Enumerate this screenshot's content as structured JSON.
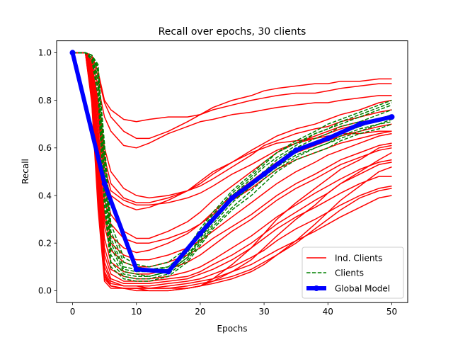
{
  "chart_data": {
    "type": "line",
    "title": "Recall over epochs, 30 clients",
    "xlabel": "Epochs",
    "ylabel": "Recall",
    "xlim": [
      -2.5,
      52.5
    ],
    "ylim": [
      -0.05,
      1.05
    ],
    "xticks": [
      0,
      10,
      20,
      30,
      40,
      50
    ],
    "yticks": [
      0.0,
      0.2,
      0.4,
      0.6,
      0.8,
      1.0
    ],
    "ytick_labels": [
      "0.0",
      "0.2",
      "0.4",
      "0.6",
      "0.8",
      "1.0"
    ],
    "grid": false,
    "legend": {
      "location": "lower right",
      "entries": [
        "Ind. Clients",
        "Clients",
        "Global Model"
      ]
    },
    "colors": {
      "ind_clients": "#ff0000",
      "clients": "#008000",
      "global": "#0000ff"
    },
    "ind_clients_x": [
      0,
      2,
      3,
      4,
      5,
      6,
      8,
      10,
      12,
      15,
      18,
      20,
      22,
      25,
      28,
      30,
      32,
      35,
      38,
      40,
      42,
      45,
      48,
      50
    ],
    "ind_clients": [
      [
        1.0,
        1.0,
        0.99,
        0.92,
        0.8,
        0.76,
        0.72,
        0.71,
        0.72,
        0.73,
        0.73,
        0.74,
        0.76,
        0.78,
        0.8,
        0.81,
        0.82,
        0.83,
        0.83,
        0.84,
        0.85,
        0.86,
        0.87,
        0.87
      ],
      [
        1.0,
        1.0,
        0.98,
        0.9,
        0.79,
        0.73,
        0.67,
        0.64,
        0.64,
        0.67,
        0.71,
        0.74,
        0.77,
        0.8,
        0.82,
        0.84,
        0.85,
        0.86,
        0.87,
        0.87,
        0.88,
        0.88,
        0.89,
        0.89
      ],
      [
        1.0,
        1.0,
        0.97,
        0.86,
        0.73,
        0.67,
        0.61,
        0.6,
        0.62,
        0.66,
        0.69,
        0.71,
        0.72,
        0.74,
        0.75,
        0.76,
        0.77,
        0.78,
        0.79,
        0.79,
        0.8,
        0.81,
        0.82,
        0.82
      ],
      [
        1.0,
        1.0,
        0.96,
        0.8,
        0.6,
        0.5,
        0.43,
        0.4,
        0.39,
        0.4,
        0.42,
        0.45,
        0.49,
        0.54,
        0.59,
        0.62,
        0.65,
        0.68,
        0.7,
        0.72,
        0.74,
        0.76,
        0.79,
        0.8
      ],
      [
        1.0,
        1.0,
        0.95,
        0.78,
        0.56,
        0.45,
        0.39,
        0.37,
        0.37,
        0.39,
        0.42,
        0.44,
        0.47,
        0.52,
        0.57,
        0.61,
        0.63,
        0.66,
        0.68,
        0.69,
        0.71,
        0.73,
        0.75,
        0.76
      ],
      [
        1.0,
        1.0,
        0.94,
        0.75,
        0.52,
        0.42,
        0.38,
        0.36,
        0.36,
        0.37,
        0.39,
        0.41,
        0.44,
        0.49,
        0.53,
        0.56,
        0.59,
        0.62,
        0.64,
        0.66,
        0.68,
        0.7,
        0.72,
        0.73
      ],
      [
        1.0,
        1.0,
        0.93,
        0.72,
        0.48,
        0.4,
        0.36,
        0.34,
        0.35,
        0.38,
        0.42,
        0.46,
        0.5,
        0.54,
        0.58,
        0.6,
        0.62,
        0.63,
        0.64,
        0.65,
        0.66,
        0.66,
        0.67,
        0.67
      ],
      [
        1.0,
        1.0,
        0.92,
        0.68,
        0.42,
        0.32,
        0.25,
        0.22,
        0.22,
        0.25,
        0.29,
        0.33,
        0.38,
        0.44,
        0.5,
        0.54,
        0.58,
        0.62,
        0.65,
        0.67,
        0.69,
        0.71,
        0.72,
        0.72
      ],
      [
        1.0,
        1.0,
        0.91,
        0.66,
        0.38,
        0.28,
        0.22,
        0.2,
        0.2,
        0.22,
        0.25,
        0.28,
        0.32,
        0.38,
        0.43,
        0.47,
        0.51,
        0.55,
        0.58,
        0.6,
        0.62,
        0.64,
        0.66,
        0.67
      ],
      [
        1.0,
        1.0,
        0.9,
        0.62,
        0.32,
        0.23,
        0.18,
        0.16,
        0.17,
        0.2,
        0.24,
        0.28,
        0.33,
        0.4,
        0.46,
        0.5,
        0.54,
        0.58,
        0.61,
        0.63,
        0.65,
        0.67,
        0.69,
        0.7
      ],
      [
        1.0,
        1.0,
        0.9,
        0.6,
        0.3,
        0.2,
        0.15,
        0.13,
        0.13,
        0.15,
        0.18,
        0.21,
        0.25,
        0.31,
        0.37,
        0.41,
        0.45,
        0.5,
        0.54,
        0.57,
        0.59,
        0.62,
        0.65,
        0.66
      ],
      [
        1.0,
        1.0,
        0.89,
        0.58,
        0.27,
        0.17,
        0.12,
        0.1,
        0.1,
        0.12,
        0.15,
        0.18,
        0.22,
        0.27,
        0.32,
        0.36,
        0.4,
        0.45,
        0.49,
        0.52,
        0.55,
        0.58,
        0.61,
        0.62
      ],
      [
        1.0,
        1.0,
        0.88,
        0.55,
        0.22,
        0.12,
        0.08,
        0.07,
        0.07,
        0.09,
        0.12,
        0.15,
        0.19,
        0.25,
        0.3,
        0.34,
        0.38,
        0.43,
        0.47,
        0.5,
        0.53,
        0.56,
        0.59,
        0.6
      ],
      [
        1.0,
        1.0,
        0.87,
        0.52,
        0.18,
        0.09,
        0.06,
        0.05,
        0.05,
        0.06,
        0.08,
        0.1,
        0.13,
        0.18,
        0.23,
        0.27,
        0.31,
        0.36,
        0.41,
        0.44,
        0.47,
        0.51,
        0.54,
        0.55
      ],
      [
        1.0,
        1.0,
        0.86,
        0.5,
        0.15,
        0.07,
        0.04,
        0.04,
        0.04,
        0.05,
        0.06,
        0.08,
        0.11,
        0.15,
        0.2,
        0.24,
        0.28,
        0.33,
        0.38,
        0.41,
        0.45,
        0.49,
        0.53,
        0.54
      ],
      [
        1.0,
        1.0,
        0.85,
        0.47,
        0.12,
        0.05,
        0.03,
        0.03,
        0.03,
        0.04,
        0.05,
        0.07,
        0.09,
        0.13,
        0.18,
        0.22,
        0.26,
        0.31,
        0.35,
        0.38,
        0.41,
        0.45,
        0.48,
        0.48
      ],
      [
        1.0,
        1.0,
        0.84,
        0.44,
        0.1,
        0.04,
        0.02,
        0.02,
        0.02,
        0.03,
        0.04,
        0.05,
        0.07,
        0.1,
        0.14,
        0.17,
        0.21,
        0.26,
        0.3,
        0.33,
        0.36,
        0.4,
        0.43,
        0.44
      ],
      [
        1.0,
        1.0,
        0.83,
        0.42,
        0.08,
        0.03,
        0.02,
        0.02,
        0.01,
        0.02,
        0.03,
        0.04,
        0.05,
        0.08,
        0.11,
        0.14,
        0.17,
        0.21,
        0.25,
        0.28,
        0.31,
        0.35,
        0.39,
        0.4
      ],
      [
        1.0,
        1.0,
        0.82,
        0.4,
        0.07,
        0.02,
        0.01,
        0.01,
        0.01,
        0.01,
        0.02,
        0.03,
        0.04,
        0.06,
        0.09,
        0.12,
        0.15,
        0.2,
        0.26,
        0.3,
        0.34,
        0.39,
        0.42,
        0.43
      ],
      [
        1.0,
        1.0,
        0.81,
        0.38,
        0.06,
        0.02,
        0.01,
        0.01,
        0.01,
        0.01,
        0.01,
        0.02,
        0.03,
        0.05,
        0.08,
        0.11,
        0.15,
        0.21,
        0.28,
        0.33,
        0.38,
        0.44,
        0.5,
        0.52
      ],
      [
        1.0,
        1.0,
        0.8,
        0.36,
        0.05,
        0.02,
        0.01,
        0.01,
        0.0,
        0.0,
        0.01,
        0.02,
        0.04,
        0.08,
        0.13,
        0.18,
        0.23,
        0.3,
        0.36,
        0.41,
        0.45,
        0.5,
        0.55,
        0.58
      ],
      [
        1.0,
        1.0,
        0.79,
        0.34,
        0.04,
        0.01,
        0.01,
        0.0,
        0.0,
        0.0,
        0.01,
        0.02,
        0.05,
        0.11,
        0.18,
        0.24,
        0.3,
        0.37,
        0.43,
        0.47,
        0.51,
        0.55,
        0.6,
        0.61
      ]
    ],
    "clients_x": [
      0,
      2,
      3,
      4,
      5,
      6,
      8,
      10,
      12,
      15,
      18,
      20,
      22,
      25,
      28,
      30,
      32,
      35,
      38,
      40,
      42,
      45,
      48,
      50
    ],
    "clients": [
      [
        1.0,
        1.0,
        0.99,
        0.94,
        0.6,
        0.25,
        0.12,
        0.1,
        0.09,
        0.1,
        0.16,
        0.24,
        0.31,
        0.4,
        0.47,
        0.52,
        0.56,
        0.61,
        0.66,
        0.68,
        0.7,
        0.73,
        0.76,
        0.78
      ],
      [
        1.0,
        1.0,
        0.98,
        0.9,
        0.5,
        0.18,
        0.08,
        0.07,
        0.06,
        0.08,
        0.14,
        0.21,
        0.28,
        0.37,
        0.44,
        0.49,
        0.53,
        0.58,
        0.62,
        0.64,
        0.66,
        0.69,
        0.72,
        0.74
      ],
      [
        1.0,
        1.0,
        0.99,
        0.95,
        0.55,
        0.2,
        0.09,
        0.08,
        0.08,
        0.09,
        0.15,
        0.22,
        0.3,
        0.39,
        0.45,
        0.5,
        0.55,
        0.6,
        0.64,
        0.66,
        0.69,
        0.71,
        0.74,
        0.76
      ],
      [
        1.0,
        1.0,
        0.97,
        0.85,
        0.4,
        0.12,
        0.06,
        0.05,
        0.05,
        0.07,
        0.13,
        0.2,
        0.27,
        0.35,
        0.42,
        0.47,
        0.51,
        0.56,
        0.6,
        0.62,
        0.64,
        0.67,
        0.7,
        0.72
      ],
      [
        1.0,
        1.0,
        0.99,
        0.93,
        0.62,
        0.28,
        0.14,
        0.11,
        0.1,
        0.12,
        0.18,
        0.26,
        0.33,
        0.42,
        0.49,
        0.54,
        0.58,
        0.63,
        0.67,
        0.7,
        0.72,
        0.75,
        0.78,
        0.8
      ],
      [
        1.0,
        1.0,
        0.98,
        0.88,
        0.45,
        0.15,
        0.07,
        0.06,
        0.06,
        0.08,
        0.14,
        0.22,
        0.29,
        0.38,
        0.44,
        0.48,
        0.52,
        0.57,
        0.6,
        0.62,
        0.65,
        0.68,
        0.7,
        0.71
      ],
      [
        1.0,
        1.0,
        0.99,
        0.92,
        0.58,
        0.22,
        0.1,
        0.09,
        0.08,
        0.1,
        0.17,
        0.25,
        0.32,
        0.41,
        0.48,
        0.53,
        0.58,
        0.62,
        0.66,
        0.68,
        0.71,
        0.74,
        0.77,
        0.79
      ],
      [
        1.0,
        1.0,
        0.97,
        0.82,
        0.35,
        0.1,
        0.05,
        0.04,
        0.04,
        0.06,
        0.12,
        0.19,
        0.26,
        0.34,
        0.4,
        0.45,
        0.5,
        0.55,
        0.58,
        0.6,
        0.63,
        0.66,
        0.68,
        0.7
      ]
    ],
    "global_model": {
      "x": [
        0,
        5,
        10,
        15,
        20,
        25,
        30,
        35,
        40,
        45,
        50
      ],
      "values": [
        1.0,
        0.45,
        0.09,
        0.08,
        0.24,
        0.39,
        0.49,
        0.59,
        0.64,
        0.7,
        0.73
      ]
    }
  }
}
